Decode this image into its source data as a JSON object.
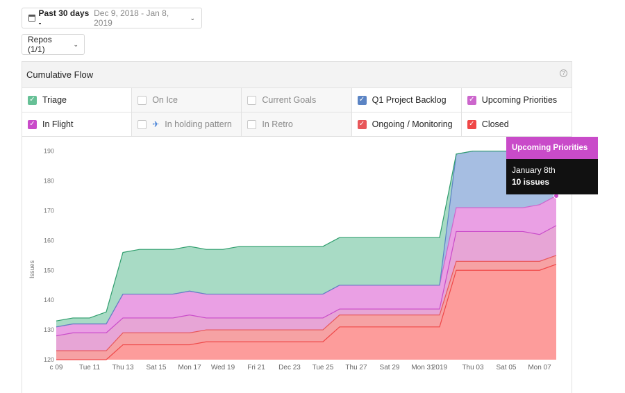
{
  "controls": {
    "date_label": "Past 30 days -",
    "date_range": "Dec 9, 2018 - Jan 8, 2019",
    "repos_label": "Repos (1/1)"
  },
  "panel": {
    "title": "Cumulative Flow",
    "help": "?"
  },
  "legend": [
    {
      "label": "Triage",
      "checked": true,
      "color": "#66c096"
    },
    {
      "label": "On Ice",
      "checked": false,
      "color": "#cccccc"
    },
    {
      "label": "Current Goals",
      "checked": false,
      "color": "#cccccc"
    },
    {
      "label": "Q1 Project Backlog",
      "checked": true,
      "color": "#5b84c4"
    },
    {
      "label": "Upcoming Priorities",
      "checked": true,
      "color": "#cc66cc"
    },
    {
      "label": "In Flight",
      "checked": true,
      "color": "#c94bc9"
    },
    {
      "label": "In holding pattern",
      "checked": false,
      "color": "#cccccc",
      "icon": "airplane-icon"
    },
    {
      "label": "In Retro",
      "checked": false,
      "color": "#cccccc"
    },
    {
      "label": "Ongoing / Monitoring",
      "checked": true,
      "color": "#e8575a"
    },
    {
      "label": "Closed",
      "checked": true,
      "color": "#ef4747"
    }
  ],
  "tooltip": {
    "series": "Upcoming Priorities",
    "date": "January 8th",
    "value": "10 issues"
  },
  "chart_data": {
    "type": "area",
    "stacked": true,
    "ylabel": "Issues",
    "ylim": [
      120,
      192
    ],
    "yticks": [
      120,
      130,
      140,
      150,
      160,
      170,
      180,
      190
    ],
    "x": [
      "Dec 9",
      "Dec 10",
      "Dec 11",
      "Dec 12",
      "Dec 13",
      "Dec 14",
      "Dec 15",
      "Dec 16",
      "Dec 17",
      "Dec 18",
      "Dec 19",
      "Dec 20",
      "Dec 21",
      "Dec 22",
      "Dec 23",
      "Dec 24",
      "Dec 25",
      "Dec 26",
      "Dec 27",
      "Dec 28",
      "Dec 29",
      "Dec 30",
      "Dec 31",
      "Jan 1",
      "Jan 2",
      "Jan 3",
      "Jan 4",
      "Jan 5",
      "Jan 6",
      "Jan 7",
      "Jan 8"
    ],
    "xtick_labels": [
      {
        "i": 0,
        "label": "c 09"
      },
      {
        "i": 2,
        "label": "Tue 11"
      },
      {
        "i": 4,
        "label": "Thu 13"
      },
      {
        "i": 6,
        "label": "Sat 15"
      },
      {
        "i": 8,
        "label": "Mon 17"
      },
      {
        "i": 10,
        "label": "Wed 19"
      },
      {
        "i": 12,
        "label": "Fri 21"
      },
      {
        "i": 14,
        "label": "Dec 23"
      },
      {
        "i": 16,
        "label": "Tue 25"
      },
      {
        "i": 18,
        "label": "Thu 27"
      },
      {
        "i": 20,
        "label": "Sat 29"
      },
      {
        "i": 22,
        "label": "Mon 31"
      },
      {
        "i": 23,
        "label": "2019"
      },
      {
        "i": 25,
        "label": "Thu 03"
      },
      {
        "i": 27,
        "label": "Sat 05"
      },
      {
        "i": 29,
        "label": "Mon 07"
      }
    ],
    "series": [
      {
        "name": "Closed",
        "color": "#ef4747",
        "fill": "#fd9c9b",
        "values": [
          120,
          120,
          120,
          120,
          125,
          125,
          125,
          125,
          125,
          126,
          126,
          126,
          126,
          126,
          126,
          126,
          126,
          131,
          131,
          131,
          131,
          131,
          131,
          131,
          150,
          150,
          150,
          150,
          150,
          150,
          152
        ]
      },
      {
        "name": "Ongoing / Monitoring",
        "color": "#e8575a",
        "fill": "#f6a2a4",
        "values": [
          123,
          123,
          123,
          123,
          129,
          129,
          129,
          129,
          129,
          130,
          130,
          130,
          130,
          130,
          130,
          130,
          130,
          135,
          135,
          135,
          135,
          135,
          135,
          135,
          153,
          153,
          153,
          153,
          153,
          153,
          155
        ]
      },
      {
        "name": "In Flight",
        "color": "#c94bc9",
        "fill": "#e7a5d6",
        "values": [
          128,
          129,
          129,
          129,
          134,
          134,
          134,
          134,
          135,
          134,
          134,
          134,
          134,
          134,
          134,
          134,
          134,
          137,
          137,
          137,
          137,
          137,
          137,
          137,
          163,
          163,
          163,
          163,
          163,
          162,
          165
        ]
      },
      {
        "name": "Upcoming Priorities",
        "color": "#cc66cc",
        "fill": "#eaa0e4",
        "values": [
          131,
          132,
          132,
          132,
          142,
          142,
          142,
          142,
          143,
          142,
          142,
          142,
          142,
          142,
          142,
          142,
          142,
          145,
          145,
          145,
          145,
          145,
          145,
          145,
          171,
          171,
          171,
          171,
          171,
          172,
          175
        ]
      },
      {
        "name": "Q1 Project Backlog",
        "color": "#5b84c4",
        "fill": "#a6bee2",
        "values": [
          131,
          132,
          132,
          132,
          142,
          142,
          142,
          142,
          143,
          142,
          142,
          142,
          142,
          142,
          142,
          142,
          142,
          145,
          145,
          145,
          145,
          145,
          145,
          145,
          189,
          190,
          190,
          190,
          190,
          190,
          190
        ]
      },
      {
        "name": "Triage",
        "color": "#2e9d6c",
        "fill": "#a8dbc5",
        "values": [
          133,
          134,
          134,
          136,
          156,
          157,
          157,
          157,
          158,
          157,
          157,
          158,
          158,
          158,
          158,
          158,
          158,
          161,
          161,
          161,
          161,
          161,
          161,
          161,
          189,
          190,
          190,
          190,
          190,
          190,
          190
        ]
      }
    ]
  }
}
